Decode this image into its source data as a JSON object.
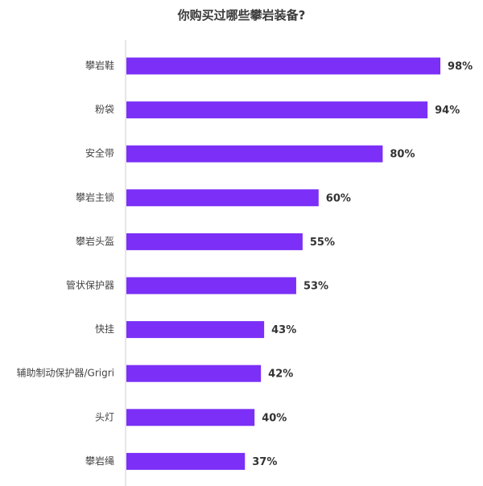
{
  "chart_data": {
    "type": "bar",
    "orientation": "horizontal",
    "title": "你购买过哪些攀岩装备?",
    "categories": [
      "攀岩鞋",
      "粉袋",
      "安全带",
      "攀岩主锁",
      "攀岩头盔",
      "管状保护器",
      "快挂",
      "辅助制动保护器/Grigri",
      "头灯",
      "攀岩绳"
    ],
    "values": [
      98,
      94,
      80,
      60,
      55,
      53,
      43,
      42,
      40,
      37
    ],
    "value_labels": [
      "98%",
      "94%",
      "80%",
      "60%",
      "55%",
      "53%",
      "43%",
      "42%",
      "40%",
      "37%"
    ],
    "unit": "%",
    "xlim": [
      0,
      100
    ],
    "grid": false,
    "legend": "none",
    "bar_color": "#7b2ff7",
    "axis_color": "#cccccc"
  }
}
